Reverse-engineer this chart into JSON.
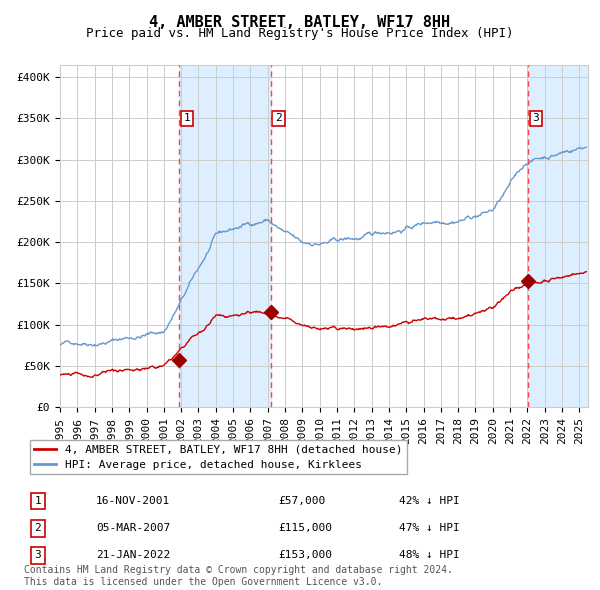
{
  "title": "4, AMBER STREET, BATLEY, WF17 8HH",
  "subtitle": "Price paid vs. HM Land Registry's House Price Index (HPI)",
  "ylabel_ticks": [
    "£0",
    "£50K",
    "£100K",
    "£150K",
    "£200K",
    "£250K",
    "£300K",
    "£350K",
    "£400K"
  ],
  "ytick_values": [
    0,
    50000,
    100000,
    150000,
    200000,
    250000,
    300000,
    350000,
    400000
  ],
  "ylim": [
    0,
    415000
  ],
  "xlim_start": 1995.0,
  "xlim_end": 2025.5,
  "transactions": [
    {
      "num": 1,
      "date_label": "16-NOV-2001",
      "year": 2001.88,
      "price": 57000,
      "price_label": "£57,000",
      "pct": "42% ↓ HPI"
    },
    {
      "num": 2,
      "date_label": "05-MAR-2007",
      "year": 2007.17,
      "price": 115000,
      "price_label": "£115,000",
      "pct": "47% ↓ HPI"
    },
    {
      "num": 3,
      "date_label": "21-JAN-2022",
      "year": 2022.05,
      "price": 153000,
      "price_label": "£153,000",
      "pct": "48% ↓ HPI"
    }
  ],
  "red_line_color": "#cc0000",
  "blue_line_color": "#6699cc",
  "shade_color": "#ddeeff",
  "grid_color": "#cccccc",
  "vline_color": "#ff4444",
  "marker_color": "#990000",
  "box_edge_color": "#cc0000",
  "legend_label_red": "4, AMBER STREET, BATLEY, WF17 8HH (detached house)",
  "legend_label_blue": "HPI: Average price, detached house, Kirklees",
  "footnote_line1": "Contains HM Land Registry data © Crown copyright and database right 2024.",
  "footnote_line2": "This data is licensed under the Open Government Licence v3.0.",
  "title_fontsize": 11,
  "subtitle_fontsize": 9,
  "tick_fontsize": 8,
  "legend_fontsize": 8,
  "footnote_fontsize": 7
}
